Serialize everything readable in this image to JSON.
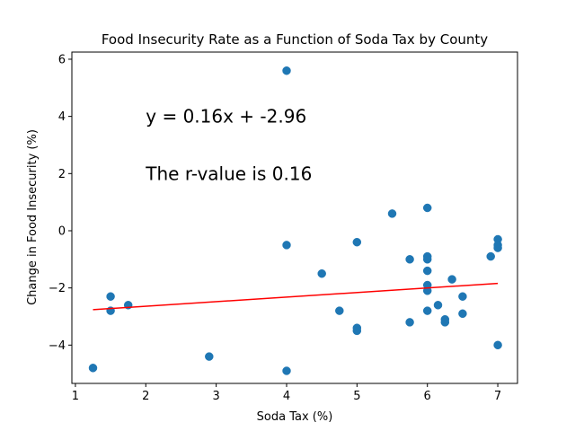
{
  "chart_data": {
    "type": "scatter",
    "title": "Food Insecurity Rate as a Function of Soda Tax by County",
    "xlabel": "Soda Tax (%)",
    "ylabel": "Change in Food Insecurity (%)",
    "xlim": [
      0.95,
      7.28
    ],
    "ylim": [
      -5.34,
      6.25
    ],
    "xticks": [
      1,
      2,
      3,
      4,
      5,
      6,
      7
    ],
    "yticks": [
      -4,
      -2,
      0,
      2,
      4,
      6
    ],
    "grid": false,
    "point_color": "#1f77b4",
    "line_color": "#ff0000",
    "points": [
      {
        "x": 1.25,
        "y": -4.8
      },
      {
        "x": 1.5,
        "y": -2.3
      },
      {
        "x": 1.5,
        "y": -2.8
      },
      {
        "x": 1.75,
        "y": -2.6
      },
      {
        "x": 2.9,
        "y": -4.4
      },
      {
        "x": 4.0,
        "y": 5.6
      },
      {
        "x": 4.0,
        "y": -0.5
      },
      {
        "x": 4.0,
        "y": -4.9
      },
      {
        "x": 4.5,
        "y": -1.5
      },
      {
        "x": 4.75,
        "y": -2.8
      },
      {
        "x": 5.0,
        "y": -0.4
      },
      {
        "x": 5.0,
        "y": -3.4
      },
      {
        "x": 5.0,
        "y": -3.5
      },
      {
        "x": 5.5,
        "y": 0.6
      },
      {
        "x": 5.75,
        "y": -1.0
      },
      {
        "x": 5.75,
        "y": -3.2
      },
      {
        "x": 6.0,
        "y": 0.8
      },
      {
        "x": 6.0,
        "y": -0.9
      },
      {
        "x": 6.0,
        "y": -1.0
      },
      {
        "x": 6.0,
        "y": -1.4
      },
      {
        "x": 6.0,
        "y": -1.9
      },
      {
        "x": 6.0,
        "y": -2.1
      },
      {
        "x": 6.0,
        "y": -2.8
      },
      {
        "x": 6.15,
        "y": -2.6
      },
      {
        "x": 6.25,
        "y": -3.1
      },
      {
        "x": 6.25,
        "y": -3.2
      },
      {
        "x": 6.35,
        "y": -1.7
      },
      {
        "x": 6.5,
        "y": -2.3
      },
      {
        "x": 6.5,
        "y": -2.9
      },
      {
        "x": 6.9,
        "y": -0.9
      },
      {
        "x": 7.0,
        "y": -0.3
      },
      {
        "x": 7.0,
        "y": -0.5
      },
      {
        "x": 7.0,
        "y": -0.6
      },
      {
        "x": 7.0,
        "y": -4.0
      }
    ],
    "regression": {
      "slope": 0.16,
      "intercept": -2.96,
      "x_range": [
        1.25,
        7.0
      ]
    },
    "annotations": [
      {
        "text": "y = 0.16x + -2.96",
        "x": 2.0,
        "y": 4.0
      },
      {
        "text": "The r-value is 0.16",
        "x": 2.0,
        "y": 2.0
      }
    ]
  }
}
